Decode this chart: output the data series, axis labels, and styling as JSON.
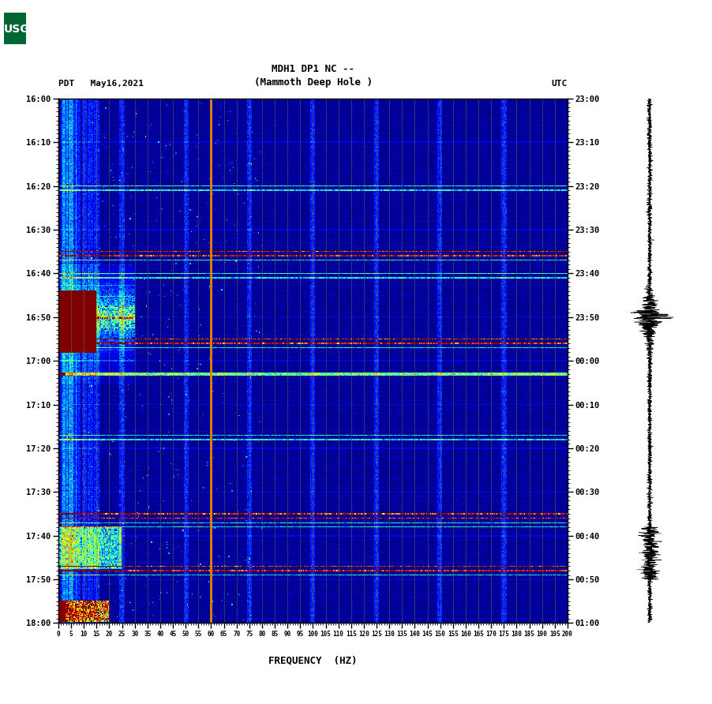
{
  "title_line1": "MDH1 DP1 NC --",
  "title_line2": "(Mammoth Deep Hole )",
  "left_label": "PDT   May16,2021",
  "right_label": "UTC",
  "ylabel_left_times": [
    "16:00",
    "16:10",
    "16:20",
    "16:30",
    "16:40",
    "16:50",
    "17:00",
    "17:10",
    "17:20",
    "17:30",
    "17:40",
    "17:50",
    "18:00"
  ],
  "ylabel_right_times": [
    "23:00",
    "23:10",
    "23:20",
    "23:30",
    "23:40",
    "23:50",
    "00:00",
    "00:10",
    "00:20",
    "00:30",
    "00:40",
    "00:50",
    "01:00"
  ],
  "freq_ticks": [
    0,
    5,
    10,
    15,
    20,
    25,
    30,
    35,
    40,
    45,
    50,
    55,
    60,
    65,
    70,
    75,
    80,
    85,
    90,
    95,
    100,
    105,
    110,
    115,
    120,
    125,
    130,
    135,
    140,
    145,
    150,
    155,
    160,
    165,
    170,
    175,
    180,
    185,
    190,
    195,
    200
  ],
  "xlabel": "FREQUENCY  (HZ)",
  "time_tick_vals": [
    0,
    10,
    20,
    30,
    40,
    50,
    60,
    70,
    80,
    90,
    100,
    110,
    120
  ],
  "orange_line_freq": 60,
  "fig_bg_color": "#ffffff"
}
